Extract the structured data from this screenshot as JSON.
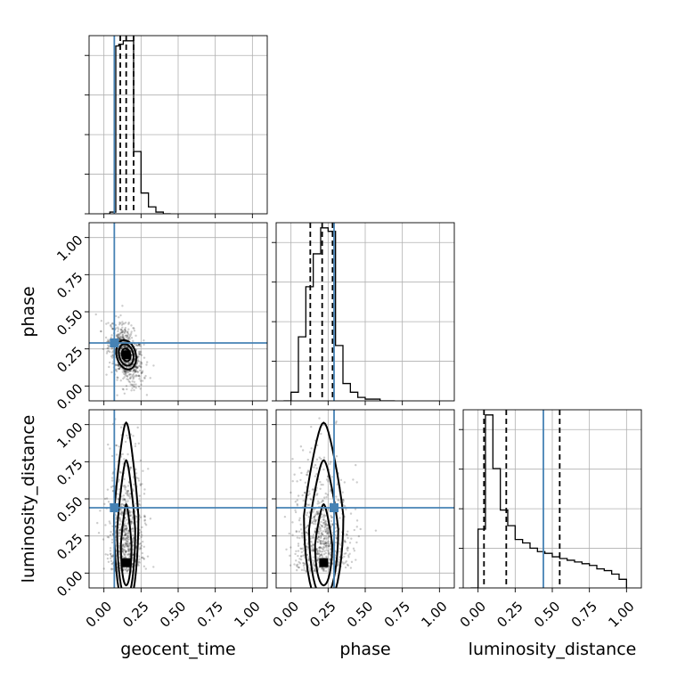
{
  "chart_data": {
    "type": "corner",
    "parameters": [
      "geocent_time",
      "phase",
      "luminosity_distance"
    ],
    "axis_range": [
      -0.1,
      1.1
    ],
    "tick_labels": [
      "0.00",
      "0.25",
      "0.50",
      "0.75",
      "1.00"
    ],
    "tick_values": [
      0.0,
      0.25,
      0.5,
      0.75,
      1.0
    ],
    "grid": true,
    "colors": {
      "truth": "#4682b4",
      "contours": "#000000",
      "samples": "#000000"
    },
    "truths": {
      "geocent_time": 0.07,
      "phase": 0.29,
      "luminosity_distance": 0.44
    },
    "quantiles": {
      "geocent_time": [
        0.11,
        0.15,
        0.2
      ],
      "phase": [
        0.13,
        0.21,
        0.28
      ],
      "luminosity_distance": [
        0.04,
        0.19,
        0.55
      ]
    },
    "histograms": {
      "geocent_time": {
        "bin_edges": [
          0.0,
          0.04,
          0.08,
          0.1,
          0.13,
          0.16,
          0.2,
          0.25,
          0.3,
          0.35,
          0.4,
          0.45
        ],
        "counts": [
          0.0,
          0.01,
          0.97,
          0.98,
          1.0,
          1.0,
          0.36,
          0.12,
          0.04,
          0.01,
          0.0
        ],
        "ylim": [
          0,
          1.03
        ]
      },
      "phase": {
        "bin_edges": [
          -0.05,
          0.0,
          0.05,
          0.1,
          0.15,
          0.2,
          0.25,
          0.3,
          0.35,
          0.4,
          0.45,
          0.5,
          0.6,
          0.7
        ],
        "counts": [
          0.0,
          0.05,
          0.37,
          0.66,
          0.85,
          1.0,
          0.98,
          0.32,
          0.1,
          0.05,
          0.02,
          0.01,
          0.0
        ],
        "ylim": [
          0,
          1.03
        ]
      },
      "luminosity_distance": {
        "bin_edges": [
          -0.05,
          0.0,
          0.05,
          0.1,
          0.15,
          0.2,
          0.25,
          0.3,
          0.35,
          0.4,
          0.45,
          0.5,
          0.55,
          0.6,
          0.65,
          0.7,
          0.75,
          0.8,
          0.85,
          0.9,
          0.95,
          1.0
        ],
        "counts": [
          0.0,
          0.34,
          1.0,
          0.69,
          0.45,
          0.36,
          0.28,
          0.26,
          0.23,
          0.21,
          0.2,
          0.18,
          0.17,
          0.16,
          0.15,
          0.14,
          0.13,
          0.11,
          0.1,
          0.08,
          0.05
        ],
        "ylim": [
          0,
          1.03
        ]
      }
    }
  }
}
